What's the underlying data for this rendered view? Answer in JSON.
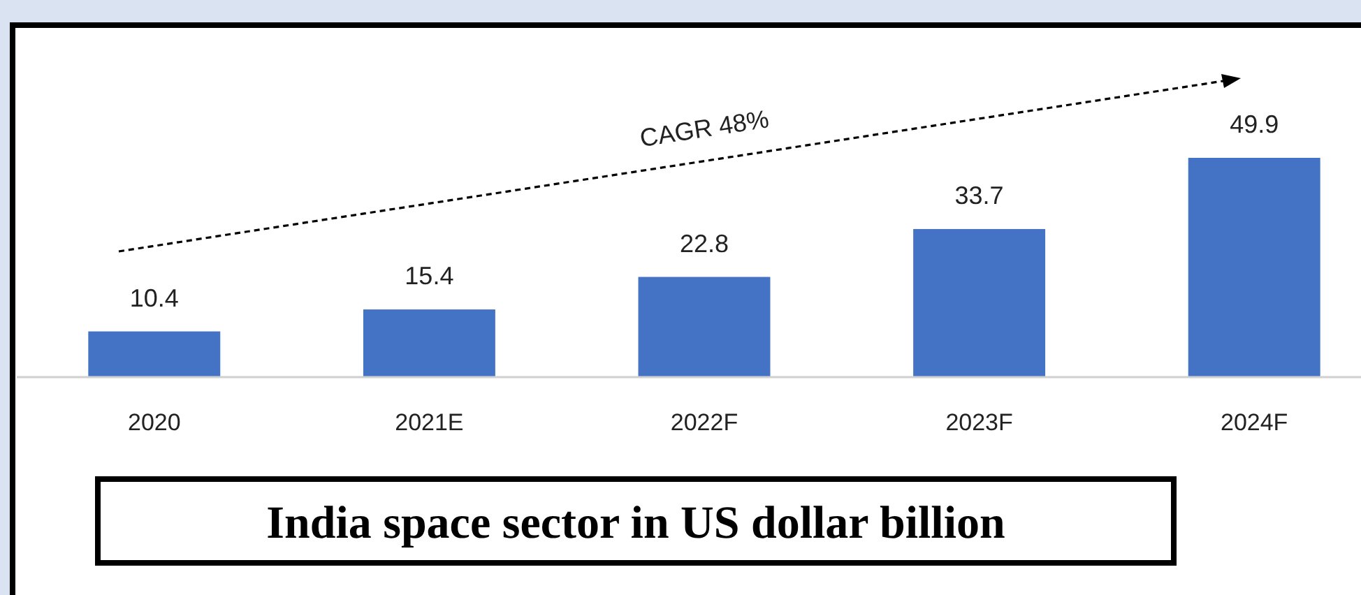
{
  "chart_data": {
    "type": "bar",
    "title": "India space sector in US dollar billion",
    "categories": [
      "2020",
      "2021E",
      "2022F",
      "2023F",
      "2024F"
    ],
    "values": [
      10.4,
      15.4,
      22.8,
      33.7,
      49.9
    ],
    "color": "#4472c4",
    "data_labels": true,
    "annotations": [
      "CAGR 48%"
    ]
  }
}
